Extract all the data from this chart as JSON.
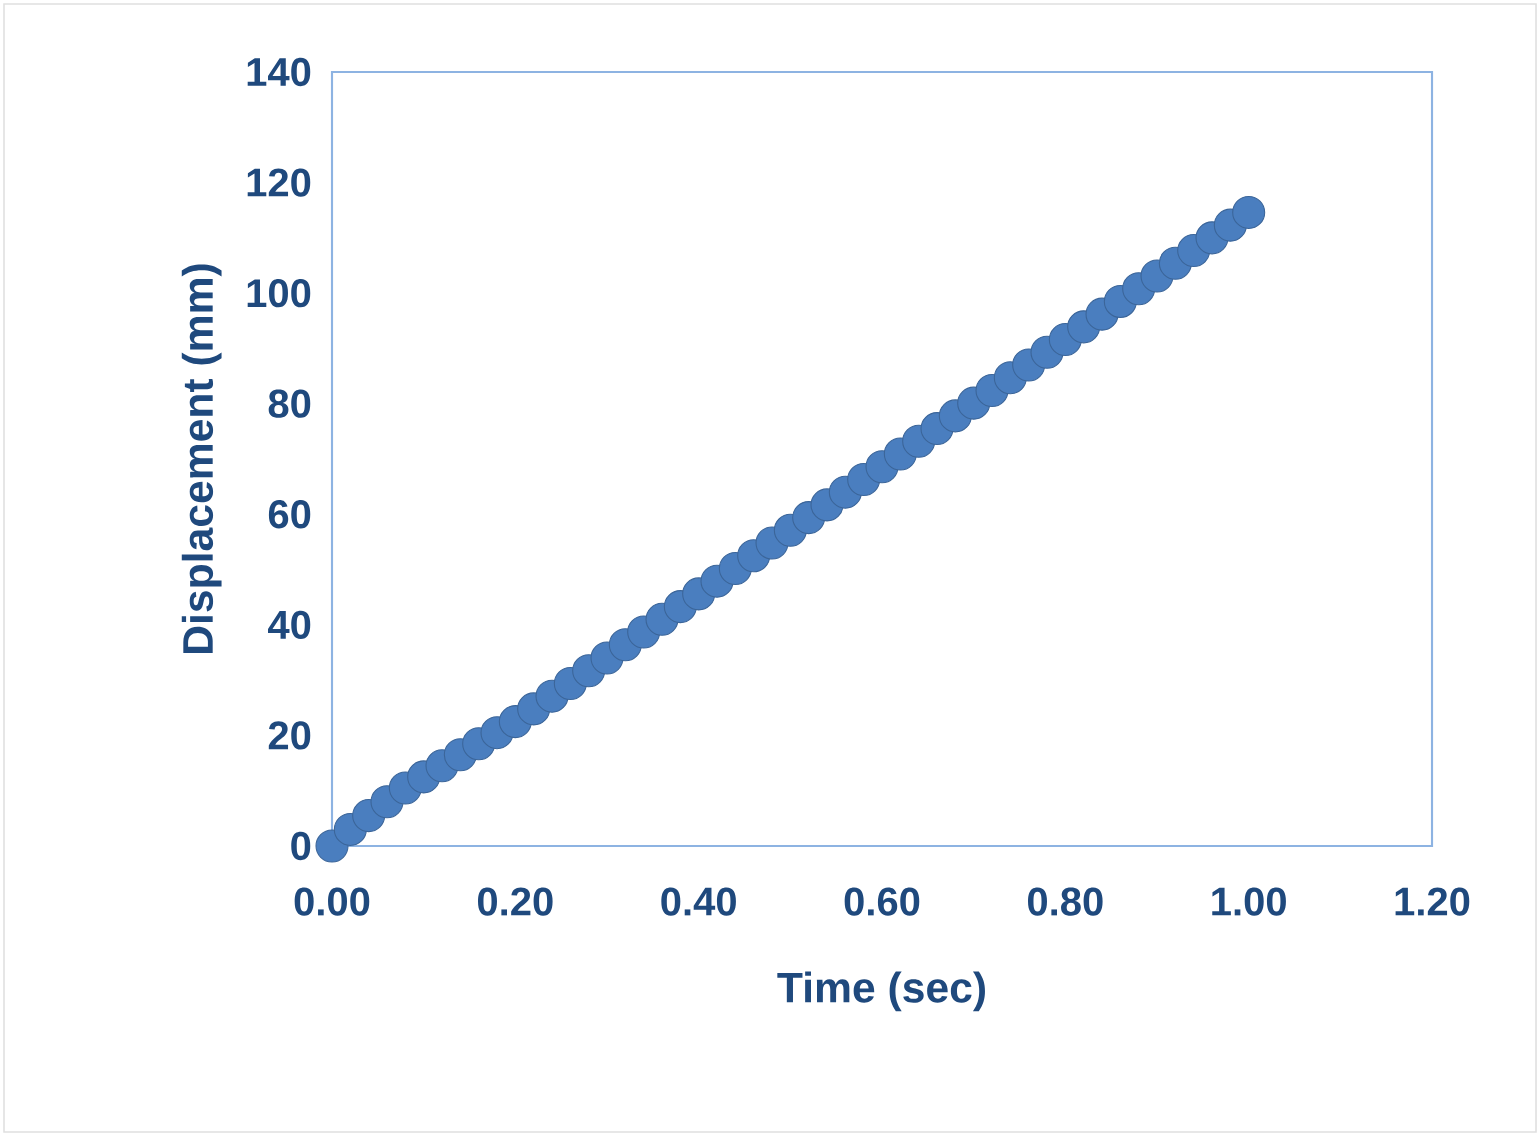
{
  "chart_data": {
    "type": "scatter",
    "xlabel": "Time  (sec)",
    "ylabel": "Displacement (mm)",
    "marker": "circle",
    "x": [
      0,
      0.02,
      0.04,
      0.06,
      0.08,
      0.1,
      0.12,
      0.14,
      0.16,
      0.18,
      0.2,
      0.22,
      0.24,
      0.26,
      0.28,
      0.3,
      0.32,
      0.34,
      0.36,
      0.38,
      0.4,
      0.42,
      0.44,
      0.46,
      0.48,
      0.5,
      0.52,
      0.54,
      0.56,
      0.58,
      0.6,
      0.62,
      0.64,
      0.66,
      0.68,
      0.7,
      0.72,
      0.74,
      0.76,
      0.78,
      0.8,
      0.82,
      0.84,
      0.86,
      0.88,
      0.9,
      0.92,
      0.94,
      0.96,
      0.98,
      1.0
    ],
    "series": [
      {
        "color": "#4a7ebf",
        "values": [
          0,
          3,
          5.5,
          8,
          10.5,
          12.5,
          14.5,
          16.5,
          18.5,
          20.5,
          22.5,
          24.8,
          27.1,
          29.4,
          31.7,
          34,
          36.4,
          38.7,
          41,
          43.3,
          45.6,
          47.9,
          50.2,
          52.5,
          54.8,
          57.1,
          59.4,
          61.7,
          64,
          66.3,
          68.6,
          70.9,
          73.2,
          75.5,
          77.8,
          80.1,
          82.4,
          84.7,
          87,
          89.3,
          91.6,
          93.9,
          96.2,
          98.5,
          100.8,
          103.1,
          105.4,
          107.7,
          110,
          112.3,
          114.6
        ]
      }
    ],
    "xlim": [
      0,
      1.2
    ],
    "xticks": [
      {
        "value": 0,
        "label": "0.00"
      },
      {
        "value": 0.2,
        "label": "0.20"
      },
      {
        "value": 0.4,
        "label": "0.40"
      },
      {
        "value": 0.6,
        "label": "0.60"
      },
      {
        "value": 0.8,
        "label": "0.80"
      },
      {
        "value": 1.0,
        "label": "1.00"
      },
      {
        "value": 1.2,
        "label": "1.20"
      }
    ],
    "ylim": [
      0,
      140
    ],
    "yticks": [
      0,
      20,
      40,
      60,
      80,
      100,
      120,
      140
    ]
  }
}
